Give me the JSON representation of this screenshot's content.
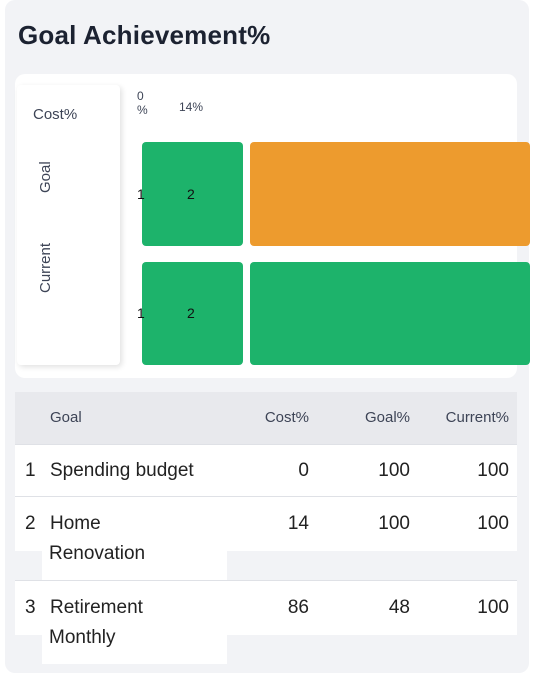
{
  "title": "Goal Achievement%",
  "chart": {
    "y_axis_label": "Cost%",
    "tick_labels": [
      {
        "value": "0",
        "unit": "%"
      },
      {
        "value": "14%",
        "unit": ""
      }
    ],
    "row_labels": [
      "Goal",
      "Current"
    ],
    "bar_numbers": [
      "1",
      "2"
    ],
    "colors": {
      "green": "#1db36b",
      "orange": "#ed9b2e"
    }
  },
  "table": {
    "headers": [
      "Goal",
      "Cost%",
      "Goal%",
      "Current%"
    ],
    "rows": [
      {
        "index": "1",
        "goal_line1": "Spending budget",
        "goal_line2": "",
        "cost": "0",
        "goal_pct": "100",
        "current": "100"
      },
      {
        "index": "2",
        "goal_line1": "Home",
        "goal_line2": "Renovation",
        "cost": "14",
        "goal_pct": "100",
        "current": "100"
      },
      {
        "index": "3",
        "goal_line1": "Retirement",
        "goal_line2": "Monthly",
        "cost": "86",
        "goal_pct": "48",
        "current": "100"
      }
    ]
  }
}
